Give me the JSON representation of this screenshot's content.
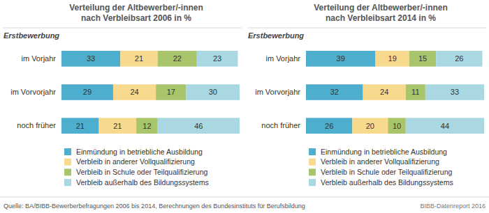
{
  "chart_data": [
    {
      "type": "bar",
      "orientation": "horizontal",
      "stacked": true,
      "data_labels": true,
      "tick_labels": "y",
      "title": "Verteilung der Altbewerber/-innen\nnach Verbleibsart 2006 in %",
      "ylabel": "Erstbewerbung",
      "categories": [
        "im Vorjahr",
        "im Vorvorjahr",
        "noch früher"
      ],
      "xlim": [
        0,
        100
      ],
      "legend": "bottom",
      "series": [
        {
          "name": "Einmündung in betriebliche Ausbildung",
          "color": "#4eaecd",
          "values": [
            33,
            29,
            21
          ]
        },
        {
          "name": "Verbleib in anderer Vollqualifizierung",
          "color": "#f8da8e",
          "values": [
            21,
            24,
            21
          ]
        },
        {
          "name": "Verbleib in Schule oder Teilqualifizierung",
          "color": "#a8c56b",
          "values": [
            22,
            17,
            12
          ]
        },
        {
          "name": "Verbleib außerhalb des Bildungssystems",
          "color": "#a9d7e2",
          "values": [
            23,
            30,
            46
          ]
        }
      ]
    },
    {
      "type": "bar",
      "orientation": "horizontal",
      "stacked": true,
      "data_labels": true,
      "tick_labels": "y",
      "title": "Verteilung der Altbewerber/-innen\nnach Verbleibsart 2014 in %",
      "ylabel": "Erstbewerbung",
      "categories": [
        "im Vorjahr",
        "im Vorvorjahr",
        "noch früher"
      ],
      "xlim": [
        0,
        100
      ],
      "legend": "bottom",
      "series": [
        {
          "name": "Einmündung in betriebliche Ausbildung",
          "color": "#4eaecd",
          "values": [
            39,
            32,
            26
          ]
        },
        {
          "name": "Verbleib in anderer Vollqualifizierung",
          "color": "#f8da8e",
          "values": [
            19,
            24,
            20
          ]
        },
        {
          "name": "Verbleib in Schule oder Teilqualifizierung",
          "color": "#a8c56b",
          "values": [
            15,
            11,
            10
          ]
        },
        {
          "name": "Verbleib außerhalb des Bildungssystems",
          "color": "#a9d7e2",
          "values": [
            26,
            33,
            44
          ]
        }
      ]
    }
  ],
  "source": "Quelle: BA/BIBB-Bewerberbefragungen 2006 bis 2014, Berechnungen des Bundesinstituts für Berufsbildung",
  "credit": "BIBB-Datenreport 2016"
}
